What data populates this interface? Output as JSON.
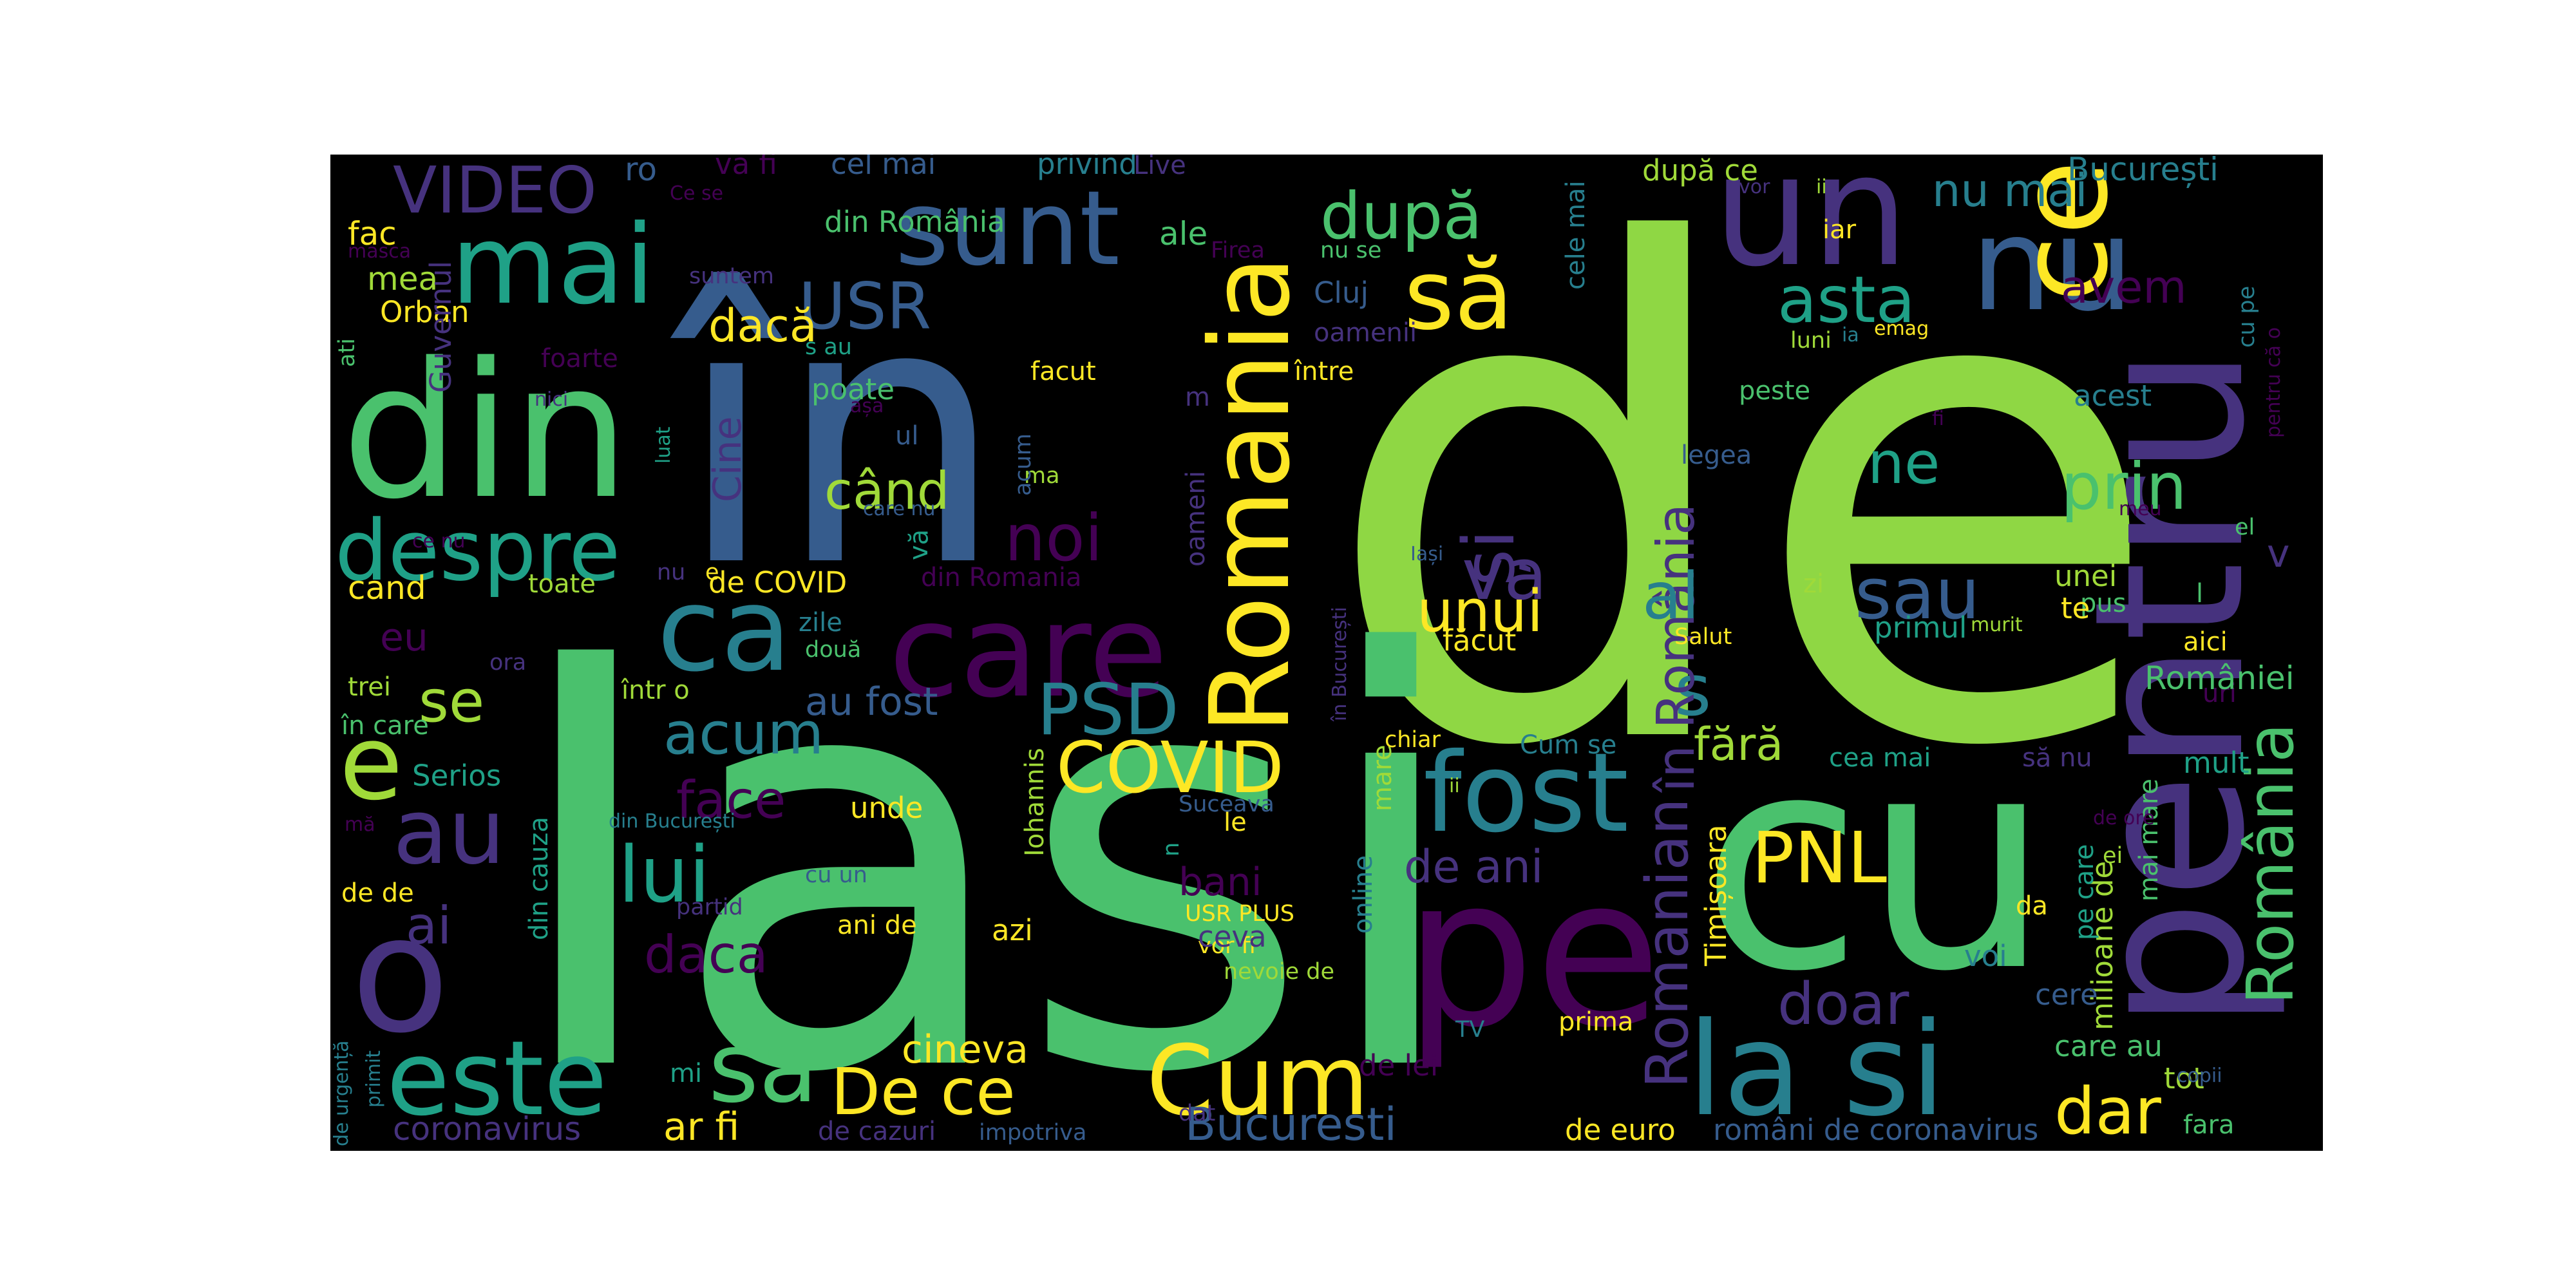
{
  "figure": {
    "background": "#ffffff",
    "panel_background": "#000000"
  },
  "palette": [
    "#440154",
    "#46327e",
    "#365c8d",
    "#277f8e",
    "#1fa187",
    "#4ac16d",
    "#a0da39",
    "#fde725",
    "#8fd744",
    "#3b528b",
    "#2c728e",
    "#5ec962",
    "#35b779",
    "#21918c"
  ],
  "words": [
    "de",
    "Iasi",
    "în",
    "pentru",
    "cu",
    "un",
    "nu",
    "din",
    "ce",
    "pe",
    "o",
    "Romania",
    "e",
    "sunt",
    "care",
    "ca",
    "mai",
    "să",
    "la si",
    "este",
    "sa",
    "Cum",
    "De ce",
    "fost",
    "despre",
    "au",
    "PSD",
    "COVID",
    "și",
    "va",
    "prin",
    "sau",
    "asta",
    "după",
    "lui",
    "România",
    "acum",
    "PNL",
    "s",
    "în România",
    "dar",
    "Romanian",
    "noi",
    "USR",
    "VIDEO",
    "când",
    "unui",
    "al",
    "ne",
    "avem",
    "doar",
    "face",
    "daca",
    "se",
    "de ani",
    "nu mai",
    "ai",
    "fără",
    "cineva",
    "Bucuresti",
    "ar fi",
    "au fost",
    "Cine",
    "dacă",
    "cand",
    "eu",
    "ale",
    "fac",
    "mea",
    "Orban",
    "Guvernul",
    "ati",
    "foarte",
    "nici",
    "toate",
    "de COVID",
    "din Romania",
    "din România",
    "Cluj",
    "oamenii",
    "între",
    "acest",
    "unei",
    "primul",
    "aici",
    "uri",
    "mult",
    "cea mai",
    "să nu",
    "zi",
    "pus",
    "l",
    "te",
    "v",
    "el",
    "Salut",
    "legea",
    "peste",
    "luni",
    "ia",
    "emag",
    "cele mai",
    "nu se",
    "Firea",
    "iar",
    "ii",
    "vor",
    "București",
    "după ce",
    "privind",
    "Live",
    "cel mai",
    "va fi",
    "ro",
    "Ce se",
    "masca",
    "suntem",
    "s au",
    "poate",
    "ul",
    "ma",
    "m",
    "oameni",
    "făcut",
    "facut",
    "acum",
    "zile",
    "două",
    "ora",
    "într o",
    "trei",
    "în care",
    "Serios",
    "din cauza",
    "de de",
    "mă",
    "din București",
    "cu un",
    "unde",
    "Iohannis",
    "n",
    "le",
    "bani",
    "vor fi",
    "USR PLUS",
    "ani de",
    "azi",
    "ceva",
    "nevoie de",
    "online",
    "mare",
    "chiar",
    "ii",
    "Suceava",
    "Cum se",
    "în București",
    "Iași",
    "de lei",
    "TV",
    "prima",
    "Timișoara",
    "de euro",
    "români de coronavirus",
    "care au",
    "tot",
    "fara",
    "copii",
    "milioane de",
    "mai mare",
    "pe care",
    "ei",
    "de ore",
    "României",
    "cere",
    "da",
    "voi",
    "coronavirus",
    "de cazuri",
    "impotriva",
    "dat",
    "partid",
    "de urgență",
    "primit",
    "mi",
    "fi",
    "meu",
    "pentru că o",
    "cu pe",
    "murit",
    "nu",
    "e",
    "care nu",
    "vă",
    "ce nu",
    "luat",
    "așa"
  ]
}
